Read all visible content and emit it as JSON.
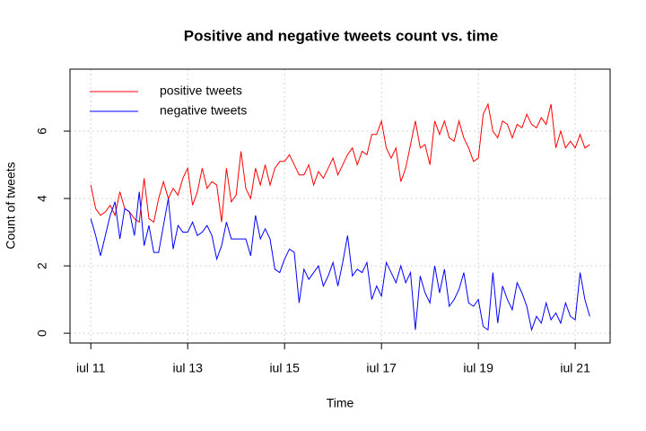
{
  "chart_data": {
    "type": "line",
    "title": "Positive and negative tweets count vs. time",
    "x_label": "Time",
    "y_label": "Count of tweets",
    "x": [
      11.0,
      11.1,
      11.2,
      11.3,
      11.4,
      11.5,
      11.6,
      11.7,
      11.8,
      11.9,
      12.0,
      12.1,
      12.2,
      12.3,
      12.4,
      12.5,
      12.6,
      12.7,
      12.8,
      12.9,
      13.0,
      13.1,
      13.2,
      13.3,
      13.4,
      13.5,
      13.6,
      13.7,
      13.8,
      13.9,
      14.0,
      14.1,
      14.2,
      14.3,
      14.4,
      14.5,
      14.6,
      14.7,
      14.8,
      14.9,
      15.0,
      15.1,
      15.2,
      15.3,
      15.4,
      15.5,
      15.6,
      15.7,
      15.8,
      15.9,
      16.0,
      16.1,
      16.2,
      16.3,
      16.4,
      16.5,
      16.6,
      16.7,
      16.8,
      16.9,
      17.0,
      17.1,
      17.2,
      17.3,
      17.4,
      17.5,
      17.6,
      17.7,
      17.8,
      17.9,
      18.0,
      18.1,
      18.2,
      18.3,
      18.4,
      18.5,
      18.6,
      18.7,
      18.8,
      18.9,
      19.0,
      19.1,
      19.2,
      19.3,
      19.4,
      19.5,
      19.6,
      19.7,
      19.8,
      19.9,
      20.0,
      20.1,
      20.2,
      20.3,
      20.4,
      20.5,
      20.6,
      20.7,
      20.8,
      20.9,
      21.0,
      21.1,
      21.2,
      21.3
    ],
    "series": [
      {
        "name": "positive tweets",
        "color": "#ff0000",
        "values": [
          4.4,
          3.7,
          3.5,
          3.6,
          3.8,
          3.5,
          4.2,
          3.7,
          3.6,
          3.4,
          3.3,
          4.6,
          3.4,
          3.3,
          4.0,
          4.5,
          4.0,
          4.3,
          4.1,
          4.6,
          4.9,
          3.8,
          4.2,
          4.9,
          4.3,
          4.5,
          4.4,
          3.3,
          4.9,
          3.9,
          4.1,
          5.4,
          4.3,
          4.0,
          4.9,
          4.4,
          5.0,
          4.4,
          4.9,
          5.1,
          5.1,
          5.3,
          5.0,
          4.7,
          4.7,
          5.0,
          4.4,
          4.8,
          4.6,
          4.9,
          5.2,
          4.7,
          5.0,
          5.3,
          5.5,
          5.0,
          5.4,
          5.3,
          5.9,
          5.9,
          6.3,
          5.5,
          5.2,
          5.5,
          4.5,
          4.9,
          5.6,
          6.3,
          5.5,
          5.6,
          5.0,
          6.3,
          5.9,
          6.3,
          5.8,
          5.7,
          6.3,
          5.8,
          5.5,
          5.1,
          5.2,
          6.5,
          6.8,
          6.0,
          5.8,
          6.3,
          6.2,
          5.8,
          6.2,
          6.1,
          6.5,
          6.2,
          6.1,
          6.4,
          6.2,
          6.8,
          5.5,
          6.0,
          5.5,
          5.7,
          5.5,
          5.9,
          5.5,
          5.6
        ]
      },
      {
        "name": "negative tweets",
        "color": "#0000ff",
        "values": [
          3.4,
          2.9,
          2.3,
          2.9,
          3.5,
          3.9,
          2.8,
          3.7,
          3.6,
          2.9,
          4.2,
          2.6,
          3.2,
          2.4,
          2.4,
          3.2,
          4.0,
          2.5,
          3.2,
          3.0,
          3.0,
          3.3,
          2.9,
          3.0,
          3.2,
          2.9,
          2.2,
          2.6,
          3.3,
          2.8,
          2.8,
          2.8,
          2.8,
          2.3,
          3.5,
          2.8,
          3.1,
          2.8,
          1.9,
          1.8,
          2.2,
          2.5,
          2.4,
          0.9,
          1.9,
          1.6,
          1.8,
          2.0,
          1.4,
          1.7,
          2.1,
          1.4,
          2.1,
          2.9,
          1.7,
          1.9,
          1.8,
          2.1,
          1.0,
          1.4,
          1.1,
          2.1,
          1.8,
          1.5,
          2.0,
          1.5,
          1.8,
          0.1,
          1.7,
          1.2,
          0.9,
          2.0,
          1.2,
          1.9,
          0.8,
          1.0,
          1.3,
          1.8,
          0.9,
          0.8,
          1.0,
          0.2,
          0.1,
          1.8,
          0.3,
          1.4,
          1.0,
          0.7,
          1.5,
          1.2,
          0.8,
          0.1,
          0.5,
          0.3,
          0.9,
          0.4,
          0.6,
          0.3,
          0.9,
          0.5,
          0.4,
          1.8,
          1.0,
          0.5
        ]
      }
    ],
    "xlim": [
      10.57,
      21.72
    ],
    "xticks": [
      {
        "value": 11,
        "label": "iul 11"
      },
      {
        "value": 13,
        "label": "iul 13"
      },
      {
        "value": 15,
        "label": "iul 15"
      },
      {
        "value": 17,
        "label": "iul 17"
      },
      {
        "value": 19,
        "label": "iul 19"
      },
      {
        "value": 21,
        "label": "iul 21"
      }
    ],
    "ylim": [
      -0.29,
      7.84
    ],
    "yticks": [
      0,
      2,
      4,
      6
    ],
    "grid": true,
    "legend": "topleft"
  }
}
